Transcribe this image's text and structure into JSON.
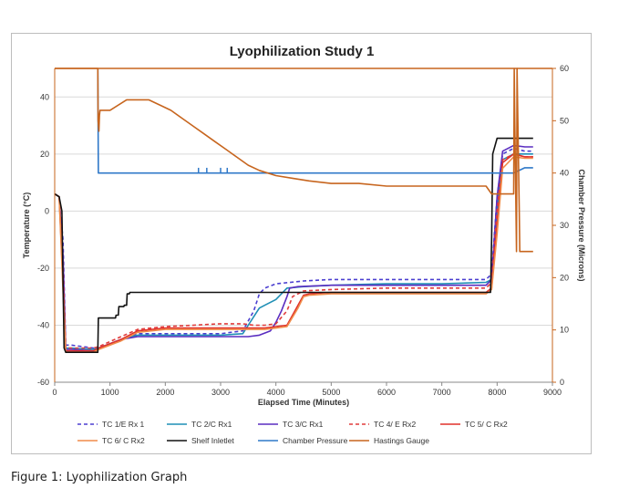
{
  "caption": "Figure 1: Lyophilization Graph",
  "chart_data": {
    "type": "line",
    "title": "Lyophilization Study 1",
    "xlabel": "Elapsed Time (Minutes)",
    "ylabel": "Temperature (°C)",
    "y2label": "Chamber Pressure (Microns)",
    "xlim": [
      0,
      9000
    ],
    "ylim": [
      -60,
      50
    ],
    "y2lim": [
      0,
      60
    ],
    "xticks": [
      "0",
      "1000",
      "2000",
      "3000",
      "4000",
      "5000",
      "6000",
      "7000",
      "8000",
      "9000"
    ],
    "yticks": [
      "-60",
      "-40",
      "-20",
      "0",
      "20",
      "40"
    ],
    "y2ticks": [
      "0",
      "10",
      "20",
      "30",
      "40",
      "50",
      "60"
    ],
    "grid": "horizontal",
    "legend_position": "bottom",
    "series": [
      {
        "name": "TC 1/E Rx 1",
        "axis": "left",
        "color": "#4b3fd0",
        "dash": "4,3",
        "x": [
          0,
          80,
          150,
          200,
          300,
          700,
          800,
          1200,
          1500,
          2000,
          2500,
          3000,
          3400,
          3600,
          3700,
          3800,
          4000,
          4500,
          5000,
          6000,
          7000,
          7800,
          7900,
          8000,
          8100,
          8300,
          8500,
          8650
        ],
        "y": [
          6,
          5,
          -10,
          -47,
          -47,
          -48,
          -48,
          -45,
          -43,
          -43,
          -43,
          -43,
          -42,
          -35,
          -29,
          -27,
          -25.5,
          -24.5,
          -24,
          -24,
          -24,
          -24,
          -22,
          5,
          20,
          22,
          21,
          21
        ]
      },
      {
        "name": "TC 2/C Rx1",
        "axis": "left",
        "color": "#1f8fb5",
        "dash": "",
        "x": [
          0,
          80,
          150,
          200,
          300,
          700,
          800,
          1200,
          1500,
          2000,
          2500,
          3000,
          3400,
          3500,
          3600,
          3700,
          3800,
          4000,
          4200,
          4500,
          5000,
          6000,
          7000,
          7800,
          7900,
          8000,
          8100,
          8300,
          8500,
          8650
        ],
        "y": [
          6,
          5,
          -20,
          -48,
          -48,
          -48.5,
          -48,
          -45,
          -43.5,
          -43.5,
          -43.5,
          -43.5,
          -43,
          -40,
          -37,
          -34,
          -33,
          -31,
          -27,
          -26.5,
          -26,
          -25.5,
          -25.5,
          -25,
          -24,
          0,
          18,
          20,
          20,
          20
        ]
      },
      {
        "name": "TC 3/C Rx1",
        "axis": "left",
        "color": "#5a2dc0",
        "dash": "",
        "x": [
          0,
          80,
          150,
          200,
          300,
          700,
          800,
          1200,
          1500,
          2000,
          2500,
          3000,
          3500,
          3700,
          3900,
          4000,
          4100,
          4200,
          4250,
          4400,
          5000,
          6000,
          7000,
          7800,
          7900,
          8000,
          8100,
          8300,
          8500,
          8650
        ],
        "y": [
          6,
          5,
          -15,
          -48.5,
          -48.5,
          -49,
          -48,
          -45,
          -44,
          -44,
          -44,
          -44,
          -44,
          -43.5,
          -42,
          -39,
          -35,
          -30,
          -27,
          -26.5,
          -26,
          -26,
          -26,
          -26,
          -24,
          5,
          21,
          23,
          22.5,
          22.5
        ]
      },
      {
        "name": "TC 4/ E Rx2",
        "axis": "left",
        "color": "#e03c3c",
        "dash": "4,3",
        "x": [
          0,
          80,
          150,
          200,
          300,
          700,
          800,
          1200,
          1500,
          2000,
          2500,
          3000,
          3400,
          3600,
          3800,
          4000,
          4200,
          4300,
          4500,
          5000,
          6000,
          7000,
          7800,
          7900,
          8000,
          8100,
          8300,
          8500,
          8650
        ],
        "y": [
          6,
          5,
          -20,
          -48,
          -48,
          -48,
          -47.5,
          -44,
          -41.5,
          -40.5,
          -40,
          -39.5,
          -39.5,
          -40,
          -40,
          -39.5,
          -35,
          -30,
          -28,
          -27.5,
          -27,
          -27,
          -27,
          -25,
          0,
          18,
          20,
          19,
          19
        ]
      },
      {
        "name": "TC 5/ C Rx2",
        "axis": "left",
        "color": "#e0302a",
        "dash": "",
        "x": [
          0,
          80,
          150,
          200,
          300,
          700,
          800,
          1200,
          1500,
          2000,
          2500,
          3000,
          3400,
          3800,
          4000,
          4200,
          4400,
          4500,
          4600,
          5000,
          6000,
          7000,
          7800,
          7900,
          8000,
          8100,
          8300,
          8500,
          8650
        ],
        "y": [
          6,
          5,
          -25,
          -49,
          -49,
          -49,
          -48,
          -45,
          -42,
          -41,
          -41,
          -41,
          -41,
          -41,
          -40.5,
          -40,
          -33,
          -29.5,
          -29,
          -28.5,
          -28.5,
          -28.5,
          -28.5,
          -27,
          -5,
          17,
          20,
          19,
          19
        ]
      },
      {
        "name": "TC 6/ C Rx2",
        "axis": "left",
        "color": "#f08c4a",
        "dash": "",
        "x": [
          0,
          80,
          150,
          200,
          300,
          700,
          800,
          1200,
          1500,
          2000,
          2500,
          3000,
          3400,
          3800,
          4000,
          4200,
          4400,
          4500,
          4600,
          5000,
          6000,
          7000,
          7800,
          7900,
          8000,
          8100,
          8300,
          8500,
          8650
        ],
        "y": [
          6,
          5,
          -28,
          -49.5,
          -49.5,
          -49.5,
          -48.5,
          -45.5,
          -42.5,
          -41.5,
          -41.5,
          -41.5,
          -41.5,
          -41.5,
          -41,
          -40.5,
          -34,
          -30,
          -29.5,
          -29,
          -29,
          -29,
          -29,
          -27.5,
          -8,
          15,
          19,
          18.5,
          18.5
        ]
      },
      {
        "name": "Shelf Inletlet",
        "axis": "left",
        "color": "#111111",
        "dash": "",
        "x": [
          0,
          80,
          130,
          170,
          200,
          500,
          780,
          790,
          1100,
          1110,
          1150,
          1160,
          1250,
          1260,
          1300,
          1310,
          1350,
          1360,
          2000,
          4000,
          6000,
          7880,
          7900,
          7920,
          8000,
          8650
        ],
        "y": [
          6,
          5,
          0,
          -48,
          -49.5,
          -49.5,
          -49.5,
          -37.5,
          -37.5,
          -36.5,
          -36.5,
          -33.5,
          -33.5,
          -33,
          -33,
          -29,
          -29,
          -28.5,
          -28.5,
          -28.5,
          -28.5,
          -28.5,
          -10,
          20,
          25.5,
          25.5
        ]
      },
      {
        "name": "Chamber Pressure",
        "axis": "right",
        "color": "#2f78c8",
        "dash": "",
        "x": [
          780,
          785,
          790,
          2600,
          3000,
          4000,
          5000,
          6000,
          7000,
          7500,
          8000,
          8300,
          8500,
          8650
        ],
        "y": [
          60,
          50,
          40,
          40,
          40,
          40,
          40,
          40,
          40,
          40,
          40,
          40,
          41,
          41
        ]
      },
      {
        "name": "Hastings Gauge",
        "axis": "right",
        "color": "#c7651e",
        "dash": "",
        "x": [
          0,
          780,
          785,
          800,
          810,
          820,
          900,
          1000,
          1300,
          1700,
          1900,
          2100,
          2300,
          2500,
          2700,
          2900,
          3100,
          3300,
          3500,
          3700,
          4000,
          4300,
          4600,
          5000,
          5500,
          6000,
          6500,
          7000,
          7500,
          7800,
          7900,
          8000,
          8300,
          8310,
          8320,
          8350,
          8360,
          8400,
          8410,
          8500,
          8650
        ],
        "y": [
          60,
          60,
          50,
          48,
          51,
          52,
          52,
          52,
          54,
          54,
          53,
          52,
          50.5,
          49,
          47.5,
          46,
          44.5,
          43,
          41.5,
          40.5,
          39.5,
          39,
          38.5,
          38,
          38,
          37.5,
          37.5,
          37.5,
          37.5,
          37.5,
          36,
          36,
          36,
          60,
          50,
          25,
          60,
          33,
          25,
          25,
          25
        ]
      }
    ]
  }
}
